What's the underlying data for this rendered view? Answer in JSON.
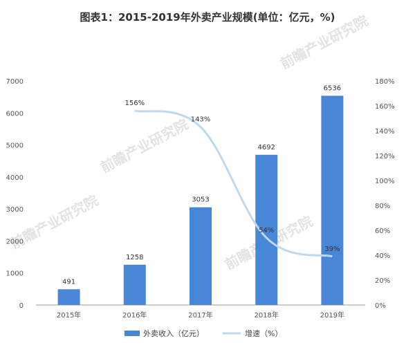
{
  "title": "图表1：2015-2019年外卖产业规模(单位：亿元，%)",
  "watermark": "前瞻产业研究院",
  "colors": {
    "bar": "#4a86d8",
    "line": "#bcd9f0",
    "grid": "#dddddd",
    "axis": "#999999"
  },
  "chart_data": {
    "type": "bar",
    "categories": [
      "2015年",
      "2016年",
      "2017年",
      "2018年",
      "2019年"
    ],
    "series": [
      {
        "name": "外卖收入（亿元）",
        "type": "bar",
        "axis": "left",
        "values": [
          491,
          1258,
          3053,
          4692,
          6536
        ],
        "labels": [
          "491",
          "1258",
          "3053",
          "4692",
          "6536"
        ]
      },
      {
        "name": "增速（%）",
        "type": "line",
        "axis": "right",
        "values": [
          null,
          156,
          143,
          54,
          39
        ],
        "labels": [
          "",
          "156%",
          "143%",
          "54%",
          "39%"
        ]
      }
    ],
    "y_left": {
      "min": 0,
      "max": 7000,
      "step": 1000,
      "ticks": [
        "0",
        "1000",
        "2000",
        "3000",
        "4000",
        "5000",
        "6000",
        "7000"
      ]
    },
    "y_right": {
      "min": 0,
      "max": 180,
      "step": 20,
      "ticks": [
        "0%",
        "20%",
        "40%",
        "60%",
        "80%",
        "100%",
        "120%",
        "140%",
        "160%",
        "180%"
      ]
    },
    "grid": false,
    "legend_position": "bottom"
  }
}
